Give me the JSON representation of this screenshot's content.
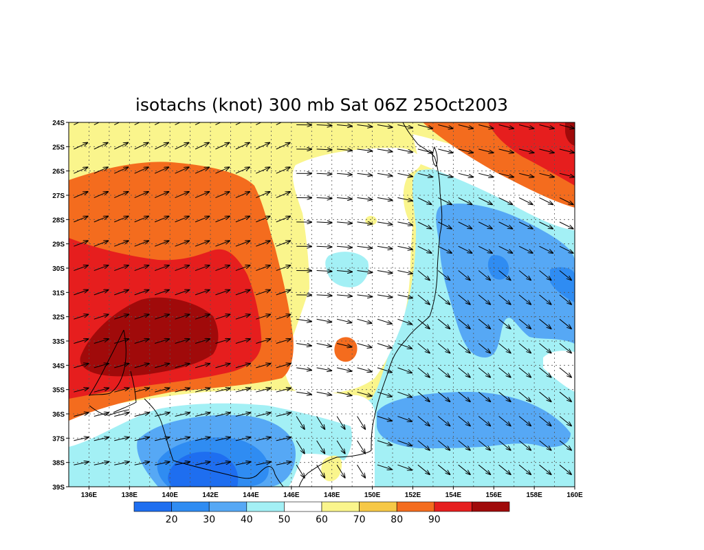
{
  "title": "isotachs (knot) 300 mb Sat 06Z 25Oct2003",
  "map": {
    "lon_range": [
      135,
      160
    ],
    "lat_range": [
      -39,
      -24
    ],
    "lon_labels": [
      "136E",
      "138E",
      "140E",
      "142E",
      "144E",
      "146E",
      "148E",
      "150E",
      "152E",
      "154E",
      "156E",
      "158E",
      "160E"
    ],
    "lat_labels": [
      "24S",
      "25S",
      "26S",
      "27S",
      "28S",
      "29S",
      "30S",
      "31S",
      "32S",
      "33S",
      "34S",
      "35S",
      "36S",
      "37S",
      "38S",
      "39S"
    ],
    "gridlines": true,
    "features": [
      "isotach-fill",
      "wind-vectors",
      "coastline"
    ]
  },
  "colorbar": {
    "colors": [
      "#1e6ef0",
      "#2f8cf2",
      "#56a8f5",
      "#a3f0f5",
      "#ffffff",
      "#faf58c",
      "#f6c846",
      "#f46c1e",
      "#e61e1e",
      "#a00a0a"
    ],
    "labels": [
      "20",
      "30",
      "40",
      "50",
      "60",
      "70",
      "80",
      "90"
    ]
  },
  "chart_data": {
    "type": "heatmap",
    "title": "isotachs (knot) 300 mb Sat 06Z 25Oct2003",
    "xlabel": "",
    "ylabel": "",
    "x_ticks": [
      "136E",
      "138E",
      "140E",
      "142E",
      "144E",
      "146E",
      "148E",
      "150E",
      "152E",
      "154E",
      "156E",
      "158E",
      "160E"
    ],
    "y_ticks": [
      "24S",
      "25S",
      "26S",
      "27S",
      "28S",
      "29S",
      "30S",
      "31S",
      "32S",
      "33S",
      "34S",
      "35S",
      "36S",
      "37S",
      "38S",
      "39S"
    ],
    "levels": [
      20,
      30,
      40,
      50,
      60,
      70,
      80,
      90
    ],
    "features": [
      {
        "lon": 139.5,
        "lat": -33.5,
        "speed": 92
      },
      {
        "lon": 137.0,
        "lat": -27.0,
        "speed": 78
      },
      {
        "lon": 141.5,
        "lat": -35.5,
        "speed": 78
      },
      {
        "lon": 158.5,
        "lat": -24.8,
        "speed": 85
      },
      {
        "lon": 148.7,
        "lat": -33.5,
        "speed": 72
      },
      {
        "lon": 147.5,
        "lat": -30.0,
        "speed": 42
      },
      {
        "lon": 155.5,
        "lat": -29.8,
        "speed": 32
      },
      {
        "lon": 156.5,
        "lat": -30.0,
        "speed": 27
      },
      {
        "lon": 159.0,
        "lat": -31.0,
        "speed": 27
      },
      {
        "lon": 153.5,
        "lat": -36.5,
        "speed": 35
      },
      {
        "lon": 142.0,
        "lat": -38.3,
        "speed": 24
      },
      {
        "lon": 159.0,
        "lat": -33.8,
        "speed": 55
      },
      {
        "lon": 147.5,
        "lat": -38.0,
        "speed": 62
      }
    ]
  }
}
